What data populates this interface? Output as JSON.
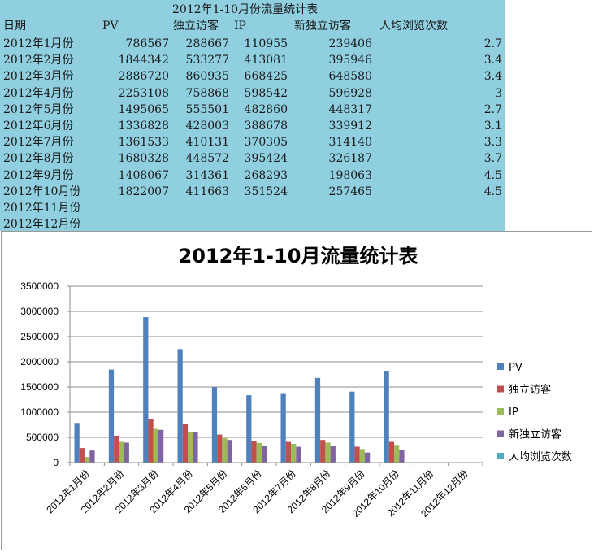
{
  "table": {
    "title": "2012年1-10月份流量统计表",
    "headers": [
      "日期",
      "PV",
      "独立访客",
      "IP",
      "新独立访客",
      "人均浏览次数"
    ],
    "rows": [
      [
        "2012年1月份",
        "786567",
        "288667",
        "110955",
        "239406",
        "2.7"
      ],
      [
        "2012年2月份",
        "1844342",
        "533277",
        "413081",
        "395946",
        "3.4"
      ],
      [
        "2012年3月份",
        "2886720",
        "860935",
        "668425",
        "648580",
        "3.4"
      ],
      [
        "2012年4月份",
        "2253108",
        "758868",
        "598542",
        "596928",
        "3"
      ],
      [
        "2012年5月份",
        "1495065",
        "555501",
        "482860",
        "448317",
        "2.7"
      ],
      [
        "2012年6月份",
        "1336828",
        "428003",
        "388678",
        "339912",
        "3.1"
      ],
      [
        "2012年7月份",
        "1361533",
        "410131",
        "370305",
        "314140",
        "3.3"
      ],
      [
        "2012年8月份",
        "1680328",
        "448572",
        "395424",
        "326187",
        "3.7"
      ],
      [
        "2012年9月份",
        "1408067",
        "314361",
        "268293",
        "198063",
        "4.5"
      ],
      [
        "2012年10月份",
        "1822007",
        "411663",
        "351524",
        "257465",
        "4.5"
      ],
      [
        "2012年11月份",
        "",
        "",
        "",
        "",
        ""
      ],
      [
        "2012年12月份",
        "",
        "",
        "",
        "",
        ""
      ]
    ]
  },
  "chart_data": {
    "type": "bar",
    "title": "2012年1-10月流量统计表",
    "categories": [
      "2012年1月份",
      "2012年2月份",
      "2012年3月份",
      "2012年4月份",
      "2012年5月份",
      "2012年6月份",
      "2012年7月份",
      "2012年8月份",
      "2012年9月份",
      "2012年10月份",
      "2012年11月份",
      "2012年12月份"
    ],
    "series": [
      {
        "name": "PV",
        "color": "#4f81bd",
        "values": [
          786567,
          1844342,
          2886720,
          2253108,
          1495065,
          1336828,
          1361533,
          1680328,
          1408067,
          1822007,
          null,
          null
        ]
      },
      {
        "name": "独立访客",
        "color": "#c0504d",
        "values": [
          288667,
          533277,
          860935,
          758868,
          555501,
          428003,
          410131,
          448572,
          314361,
          411663,
          null,
          null
        ]
      },
      {
        "name": "IP",
        "color": "#9bbb59",
        "values": [
          110955,
          413081,
          668425,
          598542,
          482860,
          388678,
          370305,
          395424,
          268293,
          351524,
          null,
          null
        ]
      },
      {
        "name": "新独立访客",
        "color": "#8064a2",
        "values": [
          239406,
          395946,
          648580,
          596928,
          448317,
          339912,
          314140,
          326187,
          198063,
          257465,
          null,
          null
        ]
      },
      {
        "name": "人均浏览次数",
        "color": "#4bacc6",
        "values": [
          2.7,
          3.4,
          3.4,
          3,
          2.7,
          3.1,
          3.3,
          3.7,
          4.5,
          4.5,
          null,
          null
        ]
      }
    ],
    "ylim": [
      0,
      3500000
    ],
    "yticks": [
      "0",
      "500000",
      "1000000",
      "1500000",
      "2000000",
      "2500000",
      "3000000",
      "3500000"
    ],
    "grid": true,
    "legend": "right"
  }
}
